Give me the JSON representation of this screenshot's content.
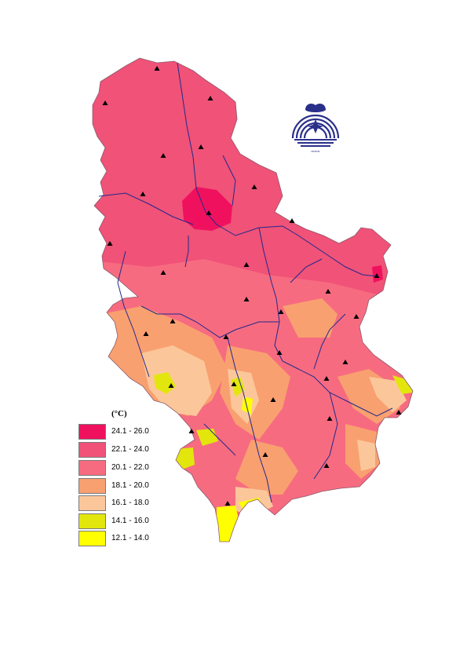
{
  "legend": {
    "title": "(°C)",
    "items": [
      {
        "label": "24.1 - 26.0",
        "color": "#f0115e"
      },
      {
        "label": "22.1 - 24.0",
        "color": "#f05278"
      },
      {
        "label": "20.1 - 22.0",
        "color": "#f76b80"
      },
      {
        "label": "18.1 - 20.0",
        "color": "#f9a070"
      },
      {
        "label": "16.1 - 18.0",
        "color": "#fbc79a"
      },
      {
        "label": "14.1 - 16.0",
        "color": "#e2e60d"
      },
      {
        "label": "12.1 - 14.0",
        "color": "#ffff00"
      }
    ]
  },
  "map": {
    "river_color": "#1f2a8c",
    "border_color": "#9a6a7a",
    "station_marker": "triangle-icon",
    "logo": "institute-logo"
  }
}
